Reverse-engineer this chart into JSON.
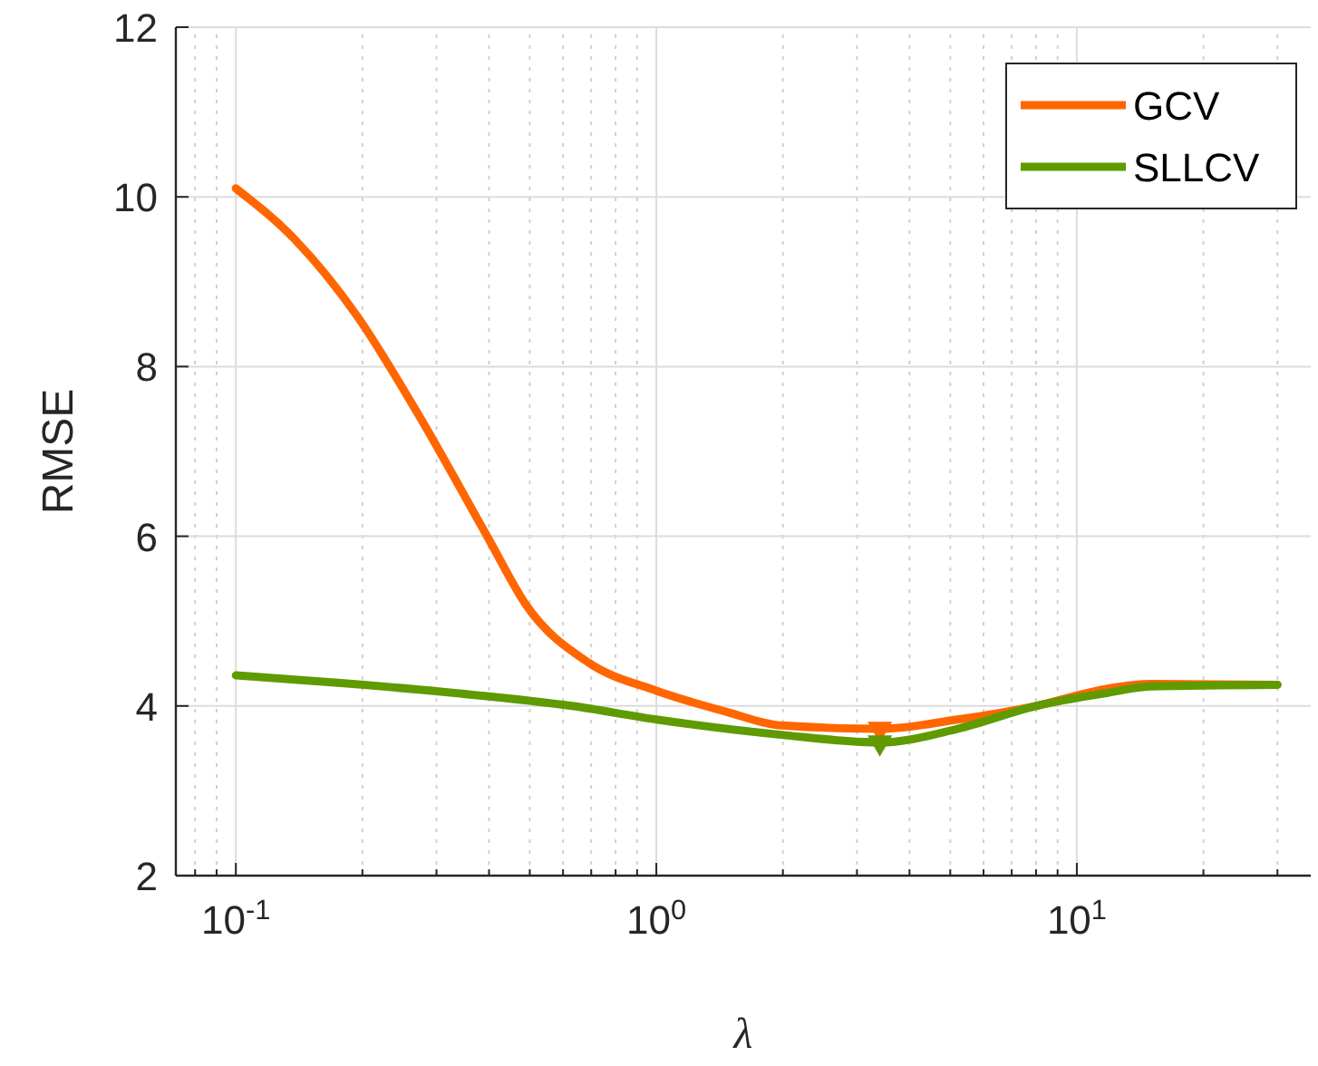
{
  "chart_data": {
    "type": "line",
    "xlabel": "λ",
    "ylabel": "RMSE",
    "log": "x",
    "grid": true,
    "legend": "top right",
    "line_style": "solid",
    "marker": "none",
    "xlim": [
      0.072,
      36
    ],
    "ylim": [
      2,
      12
    ],
    "xticks": [
      {
        "value": 0.08,
        "label": null
      },
      {
        "value": 0.09,
        "label": null
      },
      {
        "value": 0.1,
        "label": "10$^{-1}$"
      },
      {
        "value": 0.2,
        "label": null
      },
      {
        "value": 0.3,
        "label": null
      },
      {
        "value": 0.4,
        "label": null
      },
      {
        "value": 0.5,
        "label": null
      },
      {
        "value": 0.6,
        "label": null
      },
      {
        "value": 0.7,
        "label": null
      },
      {
        "value": 0.8,
        "label": null
      },
      {
        "value": 0.9,
        "label": null
      },
      {
        "value": 1,
        "label": "10$^{0}$"
      },
      {
        "value": 2,
        "label": null
      },
      {
        "value": 3,
        "label": null
      },
      {
        "value": 4,
        "label": null
      },
      {
        "value": 5,
        "label": null
      },
      {
        "value": 6,
        "label": null
      },
      {
        "value": 7,
        "label": null
      },
      {
        "value": 8,
        "label": null
      },
      {
        "value": 9,
        "label": null
      },
      {
        "value": 10,
        "label": "10$^{1}$"
      },
      {
        "value": 20,
        "label": null
      },
      {
        "value": 30,
        "label": null
      }
    ],
    "yticks": [
      2,
      4,
      6,
      8,
      10,
      12
    ],
    "series": [
      {
        "name": "GCV",
        "color": "#ff6600",
        "x": [
          0.1,
          0.138,
          0.194,
          0.272,
          0.398,
          0.49,
          0.69,
          1.0,
          1.47,
          1.98,
          3.4,
          5.2,
          8.0,
          11.7,
          15,
          30
        ],
        "values": [
          10.1,
          9.5,
          8.6,
          7.43,
          5.98,
          5.19,
          4.51,
          4.18,
          3.93,
          3.77,
          3.73,
          3.84,
          4.0,
          4.2,
          4.26,
          4.25
        ]
      },
      {
        "name": "SLLCV",
        "color": "#5f9a00",
        "x": [
          0.1,
          0.178,
          0.336,
          0.63,
          1.0,
          1.98,
          3.4,
          5.2,
          8.0,
          11.7,
          15,
          30
        ],
        "values": [
          4.36,
          4.27,
          4.15,
          4.0,
          3.84,
          3.66,
          3.57,
          3.73,
          4.0,
          4.15,
          4.23,
          4.25
        ]
      },
      {
        "type": "scatter",
        "marker": "triangle",
        "color": "#ff6600",
        "x": [
          3.4
        ],
        "values": [
          3.73
        ]
      },
      {
        "type": "scatter",
        "marker": "triangle",
        "color": "#5f9a00",
        "x": [
          3.4
        ],
        "values": [
          3.57
        ]
      }
    ]
  }
}
